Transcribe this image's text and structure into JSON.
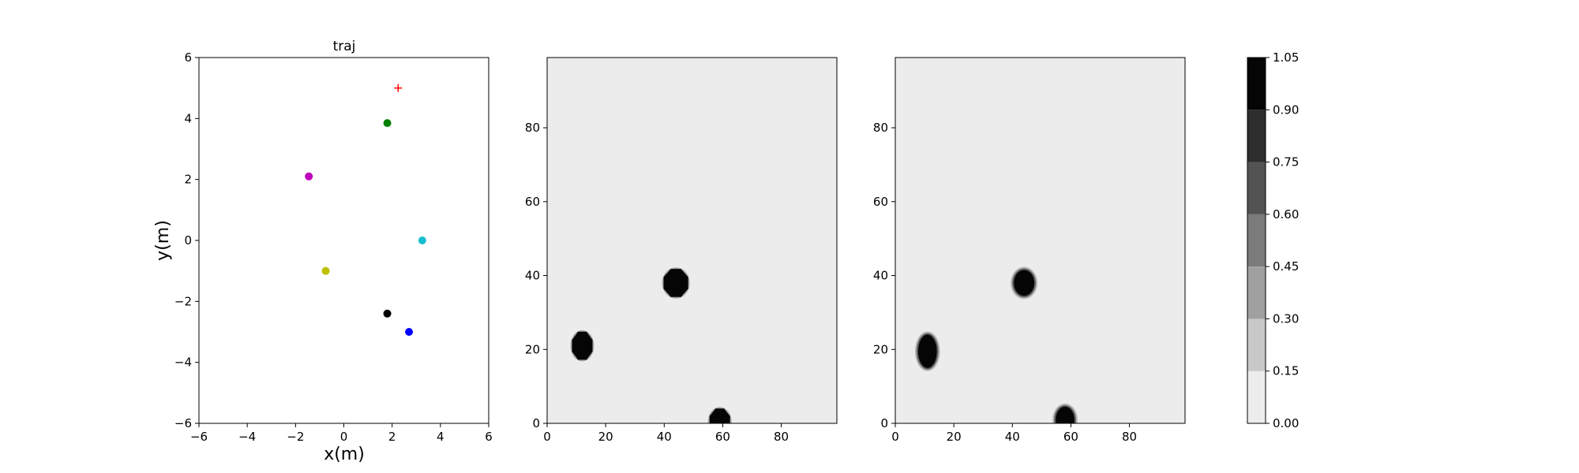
{
  "chart_data": [
    {
      "type": "scatter",
      "title": "traj",
      "xlabel": "x(m)",
      "ylabel": "y(m)",
      "xlim": [
        -6,
        6
      ],
      "ylim": [
        -6,
        6
      ],
      "xticks": [
        -6,
        -4,
        -2,
        0,
        2,
        4,
        6
      ],
      "yticks": [
        -6,
        -4,
        -2,
        0,
        2,
        4,
        6
      ],
      "xtick_labels": [
        "−6",
        "−4",
        "−2",
        "0",
        "2",
        "4",
        "6"
      ],
      "ytick_labels": [
        "−6",
        "−4",
        "−2",
        "0",
        "2",
        "4",
        "6"
      ],
      "grid": false,
      "points": [
        {
          "x": 1.8,
          "y": 3.85,
          "color": "#008000",
          "marker": "circle"
        },
        {
          "x": -1.45,
          "y": 2.1,
          "color": "#bf00bf",
          "marker": "circle"
        },
        {
          "x": 3.25,
          "y": 0.0,
          "color": "#17becf",
          "marker": "circle"
        },
        {
          "x": -0.75,
          "y": -1.0,
          "color": "#bfbf00",
          "marker": "circle"
        },
        {
          "x": 1.8,
          "y": -2.4,
          "color": "#000000",
          "marker": "circle"
        },
        {
          "x": 2.7,
          "y": -3.0,
          "color": "#0000ff",
          "marker": "circle"
        },
        {
          "x": 2.25,
          "y": 5.0,
          "color": "#ff0000",
          "marker": "plus"
        }
      ]
    },
    {
      "type": "heatmap",
      "xlim": [
        0,
        99
      ],
      "ylim": [
        0,
        99
      ],
      "xticks": [
        0,
        20,
        40,
        60,
        80
      ],
      "yticks": [
        0,
        20,
        40,
        60,
        80
      ],
      "background_value": 0.05,
      "blobs": [
        {
          "cx": 12,
          "cy": 21,
          "rx": 3.5,
          "ry": 3.8,
          "value": 1.0,
          "shape": "octagon"
        },
        {
          "cx": 44,
          "cy": 38,
          "rx": 4.2,
          "ry": 3.8,
          "value": 1.0,
          "shape": "octagon"
        },
        {
          "cx": 59,
          "cy": 0.5,
          "rx": 3.5,
          "ry": 3.5,
          "value": 1.0,
          "shape": "octagon"
        }
      ]
    },
    {
      "type": "heatmap",
      "xlim": [
        0,
        99
      ],
      "ylim": [
        0,
        99
      ],
      "xticks": [
        0,
        20,
        40,
        60,
        80
      ],
      "yticks": [
        0,
        20,
        40,
        60,
        80
      ],
      "background_value": 0.05,
      "blobs": [
        {
          "cx": 11,
          "cy": 19.5,
          "rx": 3.2,
          "ry": 4.5,
          "value": 1.0,
          "shape": "ellipse"
        },
        {
          "cx": 44,
          "cy": 38,
          "rx": 3.5,
          "ry": 3.5,
          "value": 1.0,
          "shape": "ellipse"
        },
        {
          "cx": 58,
          "cy": 1,
          "rx": 3.2,
          "ry": 3.5,
          "value": 1.0,
          "shape": "ellipse"
        }
      ]
    },
    {
      "type": "colorbar",
      "levels": [
        0.0,
        0.15,
        0.3,
        0.45,
        0.6,
        0.75,
        0.9,
        1.05
      ],
      "tick_labels": [
        "0.00",
        "0.15",
        "0.30",
        "0.45",
        "0.60",
        "0.75",
        "0.90",
        "1.05"
      ],
      "colors": [
        "#ececec",
        "#c8c8c8",
        "#a0a0a0",
        "#7b7b7b",
        "#535353",
        "#2d2d2d",
        "#050505"
      ]
    }
  ]
}
